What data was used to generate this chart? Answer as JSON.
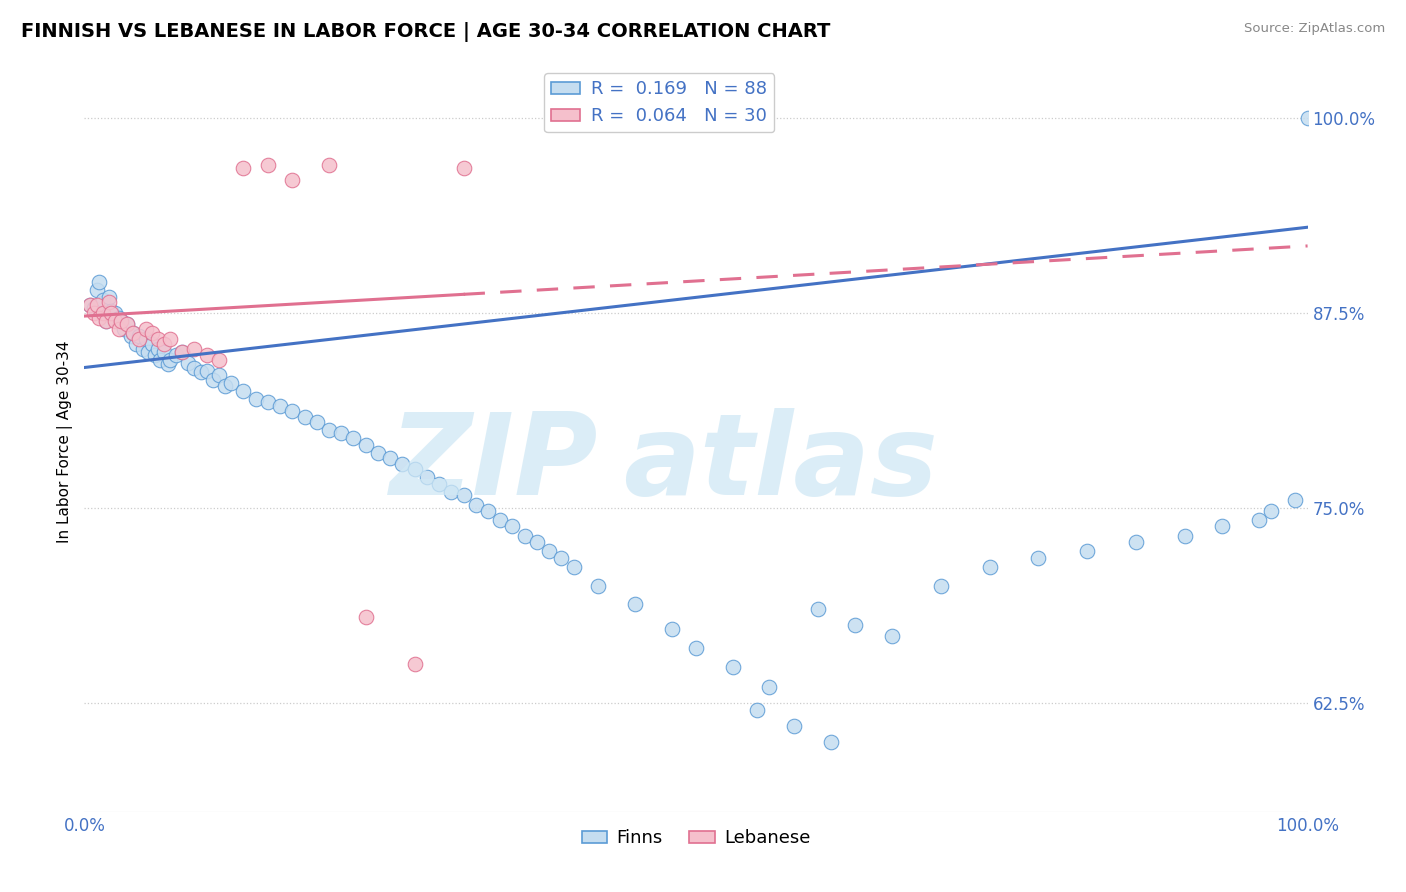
{
  "title": "FINNISH VS LEBANESE IN LABOR FORCE | AGE 30-34 CORRELATION CHART",
  "source": "Source: ZipAtlas.com",
  "ylabel": "In Labor Force | Age 30-34",
  "xlim": [
    0.0,
    1.0
  ],
  "ylim": [
    0.555,
    1.03
  ],
  "yticks": [
    0.625,
    0.75,
    0.875,
    1.0
  ],
  "ytick_labels": [
    "62.5%",
    "75.0%",
    "87.5%",
    "100.0%"
  ],
  "xticks": [
    0.0,
    1.0
  ],
  "xtick_labels": [
    "0.0%",
    "100.0%"
  ],
  "legend_labels": [
    "Finns",
    "Lebanese"
  ],
  "R_finnish": 0.169,
  "N_finnish": 88,
  "R_lebanese": 0.064,
  "N_lebanese": 30,
  "finnish_fill": "#c5ddf0",
  "finnish_edge": "#5b9bd5",
  "lebanese_fill": "#f5c0cc",
  "lebanese_edge": "#e07090",
  "finnish_line": "#4472c4",
  "lebanese_line": "#e07090",
  "grid_color": "#cccccc",
  "tick_color": "#4472c4",
  "title_fontsize": 14,
  "tick_fontsize": 12,
  "ylabel_fontsize": 11,
  "legend_fontsize": 13,
  "watermark_color": "#d0e8f5",
  "finn_line_start_y": 0.84,
  "finn_line_end_y": 0.93,
  "leb_line_start_y": 0.873,
  "leb_line_end_y": 0.918,
  "finnish_x": [
    0.005,
    0.008,
    0.01,
    0.012,
    0.015,
    0.018,
    0.02,
    0.022,
    0.025,
    0.028,
    0.03,
    0.032,
    0.035,
    0.038,
    0.04,
    0.042,
    0.045,
    0.048,
    0.05,
    0.052,
    0.055,
    0.058,
    0.06,
    0.062,
    0.065,
    0.068,
    0.07,
    0.075,
    0.08,
    0.085,
    0.09,
    0.095,
    0.1,
    0.105,
    0.11,
    0.115,
    0.12,
    0.13,
    0.14,
    0.15,
    0.16,
    0.17,
    0.18,
    0.19,
    0.2,
    0.21,
    0.22,
    0.23,
    0.24,
    0.25,
    0.26,
    0.27,
    0.28,
    0.29,
    0.3,
    0.31,
    0.32,
    0.33,
    0.34,
    0.35,
    0.36,
    0.37,
    0.38,
    0.39,
    0.4,
    0.42,
    0.45,
    0.48,
    0.5,
    0.53,
    0.56,
    0.6,
    0.63,
    0.66,
    0.7,
    0.74,
    0.78,
    0.82,
    0.86,
    0.9,
    0.93,
    0.96,
    0.97,
    0.99,
    1.0,
    0.55,
    0.58,
    0.61
  ],
  "finnish_y": [
    0.88,
    0.878,
    0.89,
    0.895,
    0.883,
    0.87,
    0.885,
    0.876,
    0.875,
    0.872,
    0.87,
    0.865,
    0.868,
    0.86,
    0.862,
    0.855,
    0.86,
    0.852,
    0.858,
    0.85,
    0.855,
    0.848,
    0.852,
    0.845,
    0.85,
    0.842,
    0.845,
    0.848,
    0.85,
    0.843,
    0.84,
    0.837,
    0.838,
    0.832,
    0.835,
    0.828,
    0.83,
    0.825,
    0.82,
    0.818,
    0.815,
    0.812,
    0.808,
    0.805,
    0.8,
    0.798,
    0.795,
    0.79,
    0.785,
    0.782,
    0.778,
    0.775,
    0.77,
    0.765,
    0.76,
    0.758,
    0.752,
    0.748,
    0.742,
    0.738,
    0.732,
    0.728,
    0.722,
    0.718,
    0.712,
    0.7,
    0.688,
    0.672,
    0.66,
    0.648,
    0.635,
    0.685,
    0.675,
    0.668,
    0.7,
    0.712,
    0.718,
    0.722,
    0.728,
    0.732,
    0.738,
    0.742,
    0.748,
    0.755,
    1.0,
    0.62,
    0.61,
    0.6
  ],
  "lebanese_x": [
    0.005,
    0.008,
    0.01,
    0.012,
    0.015,
    0.018,
    0.02,
    0.022,
    0.025,
    0.028,
    0.03,
    0.035,
    0.04,
    0.045,
    0.05,
    0.055,
    0.06,
    0.065,
    0.07,
    0.08,
    0.09,
    0.1,
    0.11,
    0.13,
    0.15,
    0.17,
    0.2,
    0.23,
    0.27,
    0.31
  ],
  "lebanese_y": [
    0.88,
    0.875,
    0.88,
    0.872,
    0.875,
    0.87,
    0.882,
    0.875,
    0.87,
    0.865,
    0.87,
    0.868,
    0.862,
    0.858,
    0.865,
    0.862,
    0.858,
    0.855,
    0.858,
    0.85,
    0.852,
    0.848,
    0.845,
    0.968,
    0.97,
    0.96,
    0.97,
    0.68,
    0.65,
    0.968
  ]
}
